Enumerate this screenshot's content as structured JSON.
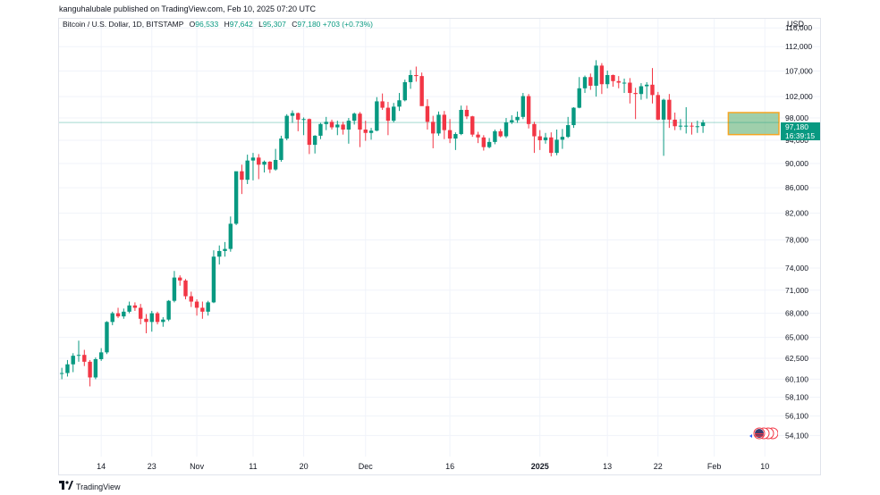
{
  "publisher_line": "kanguhalubale published on TradingView.com, Feb 10, 2025 07:20 UTC",
  "legend": {
    "symbol": "Bitcoin / U.S. Dollar, 1D, BITSTAMP",
    "open_label": "O",
    "open": "96,533",
    "high_label": "H",
    "high": "97,642",
    "low_label": "L",
    "low": "95,307",
    "close_label": "C",
    "close": "97,180",
    "change": "+703 (+0.73%)"
  },
  "currency": "USD",
  "price_tag": {
    "price": "97,180",
    "countdown": "16:39:15"
  },
  "footer": {
    "brand": "TradingView"
  },
  "colors": {
    "up": "#089981",
    "down": "#f23645",
    "box_fill": "#7fbf8f",
    "box_border": "#f5a623",
    "grid": "#f0f3fa"
  },
  "chart_data": {
    "type": "candlestick",
    "scale": "log",
    "ylim": [
      52000,
      118000
    ],
    "y_ticks": [
      54100,
      56100,
      58100,
      60100,
      62500,
      65000,
      68000,
      71000,
      74000,
      78000,
      82000,
      86000,
      90000,
      94000,
      98000,
      102000,
      107000,
      112000,
      116000
    ],
    "y_tick_labels": [
      "54,100",
      "56,100",
      "58,100",
      "60,100",
      "62,500",
      "65,000",
      "68,000",
      "71,000",
      "74,000",
      "78,000",
      "82,000",
      "86,000",
      "90,000",
      "94,000",
      "98,000",
      "102,000",
      "107,000",
      "112,000",
      "116,000"
    ],
    "x_tick_labels": [
      {
        "day": 7,
        "label": "14"
      },
      {
        "day": 16,
        "label": "23"
      },
      {
        "day": 24,
        "label": "Nov"
      },
      {
        "day": 34,
        "label": "11"
      },
      {
        "day": 43,
        "label": "20"
      },
      {
        "day": 54,
        "label": "Dec"
      },
      {
        "day": 69,
        "label": "16"
      },
      {
        "day": 85,
        "label": "2025"
      },
      {
        "day": 97,
        "label": "13"
      },
      {
        "day": 106,
        "label": "22"
      },
      {
        "day": 116,
        "label": "Feb"
      },
      {
        "day": 125,
        "label": "10"
      }
    ],
    "candles": [
      [
        60700,
        61400,
        60100,
        60800
      ],
      [
        60800,
        62300,
        60400,
        61800
      ],
      [
        61800,
        63100,
        60900,
        62800
      ],
      [
        62800,
        64600,
        62100,
        62900
      ],
      [
        62900,
        63500,
        61600,
        62100
      ],
      [
        62100,
        62300,
        59300,
        60300
      ],
      [
        60300,
        62600,
        60100,
        62400
      ],
      [
        62400,
        63700,
        62200,
        63200
      ],
      [
        63200,
        67000,
        63000,
        66900
      ],
      [
        66900,
        68200,
        66500,
        68000
      ],
      [
        68000,
        68700,
        67400,
        67600
      ],
      [
        67600,
        68600,
        67300,
        68200
      ],
      [
        68200,
        69500,
        68000,
        69000
      ],
      [
        69000,
        69400,
        68300,
        68700
      ],
      [
        68700,
        69200,
        66600,
        67300
      ],
      [
        67300,
        67900,
        65500,
        66900
      ],
      [
        66900,
        68300,
        65700,
        68000
      ],
      [
        68000,
        68200,
        66600,
        66900
      ],
      [
        66900,
        67500,
        66300,
        67200
      ],
      [
        67200,
        69700,
        67000,
        69600
      ],
      [
        69600,
        73600,
        69400,
        72700
      ],
      [
        72700,
        73000,
        71600,
        72300
      ],
      [
        72300,
        72500,
        69800,
        70200
      ],
      [
        70200,
        70800,
        68800,
        69500
      ],
      [
        69500,
        69800,
        67700,
        68700
      ],
      [
        68700,
        69500,
        67300,
        68200
      ],
      [
        68200,
        69600,
        67700,
        69400
      ],
      [
        69400,
        76500,
        69300,
        75600
      ],
      [
        75600,
        77200,
        74500,
        76400
      ],
      [
        76400,
        77700,
        75600,
        76700
      ],
      [
        76700,
        81500,
        76300,
        80400
      ],
      [
        80400,
        88600,
        80200,
        88700
      ],
      [
        88700,
        89800,
        85000,
        87300
      ],
      [
        87300,
        91500,
        86600,
        90500
      ],
      [
        90500,
        91800,
        87200,
        91000
      ],
      [
        91000,
        91600,
        87400,
        89800
      ],
      [
        89800,
        90500,
        88500,
        90300
      ],
      [
        90300,
        90400,
        88400,
        89000
      ],
      [
        89000,
        92500,
        88800,
        90600
      ],
      [
        90600,
        94800,
        90300,
        94300
      ],
      [
        94300,
        98700,
        94000,
        98400
      ],
      [
        98400,
        99400,
        97100,
        98900
      ],
      [
        98900,
        99000,
        95600,
        97700
      ],
      [
        97700,
        98100,
        94900,
        97800
      ],
      [
        97800,
        97900,
        91600,
        93200
      ],
      [
        93200,
        94900,
        91700,
        94800
      ],
      [
        94800,
        97100,
        94200,
        96900
      ],
      [
        96900,
        98200,
        95800,
        97300
      ],
      [
        97300,
        97700,
        95900,
        96300
      ],
      [
        96300,
        97500,
        94900,
        96800
      ],
      [
        96800,
        97300,
        95000,
        95900
      ],
      [
        95900,
        98000,
        93400,
        97500
      ],
      [
        97500,
        99000,
        96800,
        98800
      ],
      [
        98800,
        99100,
        92800,
        95900
      ],
      [
        95900,
        97500,
        93900,
        95300
      ],
      [
        95300,
        96200,
        94100,
        95700
      ],
      [
        95700,
        101900,
        95600,
        101100
      ],
      [
        101100,
        102600,
        99500,
        99900
      ],
      [
        99900,
        101000,
        94900,
        97500
      ],
      [
        97500,
        100800,
        97200,
        100100
      ],
      [
        100100,
        102700,
        99300,
        101300
      ],
      [
        101300,
        105300,
        101100,
        104800
      ],
      [
        104800,
        107200,
        103500,
        106200
      ],
      [
        106200,
        107900,
        104900,
        106000
      ],
      [
        106000,
        106700,
        100300,
        100200
      ],
      [
        100200,
        101500,
        95900,
        97300
      ],
      [
        97300,
        98400,
        92600,
        95200
      ],
      [
        95200,
        99200,
        94800,
        98600
      ],
      [
        98600,
        99300,
        94200,
        95800
      ],
      [
        95800,
        97800,
        93500,
        94300
      ],
      [
        94300,
        95400,
        92300,
        95100
      ],
      [
        95100,
        100300,
        94900,
        99500
      ],
      [
        99500,
        100300,
        97800,
        98300
      ],
      [
        98300,
        98400,
        94600,
        95000
      ],
      [
        95000,
        95500,
        93500,
        94500
      ],
      [
        94500,
        94900,
        92200,
        92800
      ],
      [
        92800,
        94400,
        92600,
        93700
      ],
      [
        93700,
        95900,
        93300,
        95600
      ],
      [
        95600,
        96000,
        94500,
        94700
      ],
      [
        94700,
        98000,
        94400,
        97200
      ],
      [
        97200,
        98500,
        96900,
        97600
      ],
      [
        97600,
        99200,
        97100,
        98200
      ],
      [
        98200,
        102700,
        97800,
        102100
      ],
      [
        102100,
        102500,
        96100,
        96900
      ],
      [
        96900,
        97300,
        91800,
        94700
      ],
      [
        94700,
        95800,
        92300,
        94000
      ],
      [
        94000,
        95300,
        93400,
        94500
      ],
      [
        94500,
        95400,
        91200,
        91800
      ],
      [
        91800,
        95900,
        91400,
        94100
      ],
      [
        94100,
        96000,
        92500,
        94600
      ],
      [
        94600,
        98200,
        94400,
        96700
      ],
      [
        96700,
        100000,
        96200,
        99900
      ],
      [
        99900,
        105800,
        99800,
        103600
      ],
      [
        103600,
        106100,
        102700,
        105800
      ],
      [
        105800,
        106500,
        103300,
        104100
      ],
      [
        104100,
        109200,
        102000,
        108100
      ],
      [
        108100,
        108600,
        102500,
        104400
      ],
      [
        104400,
        107100,
        103600,
        106200
      ],
      [
        106200,
        106300,
        103900,
        105000
      ],
      [
        105000,
        106000,
        103600,
        104700
      ],
      [
        104700,
        105500,
        102700,
        104700
      ],
      [
        104700,
        105600,
        100700,
        102700
      ],
      [
        102700,
        103700,
        97800,
        102500
      ],
      [
        102500,
        104600,
        101400,
        104000
      ],
      [
        104000,
        104800,
        101600,
        104300
      ],
      [
        104300,
        107600,
        100700,
        102300
      ],
      [
        102300,
        102900,
        97600,
        97700
      ],
      [
        97700,
        101600,
        91300,
        101400
      ],
      [
        101400,
        102500,
        96200,
        97700
      ],
      [
        97700,
        99000,
        95800,
        96500
      ],
      [
        96500,
        97800,
        95800,
        96600
      ],
      [
        96600,
        100000,
        95200,
        96600
      ],
      [
        96600,
        97200,
        95000,
        96500
      ],
      [
        96500,
        97500,
        95300,
        96500
      ],
      [
        96533,
        97642,
        95307,
        97180
      ]
    ],
    "last_price": 97180,
    "highlight_box": {
      "from_day": 119,
      "to_day": 127,
      "low": 95000,
      "high": 99000
    }
  }
}
